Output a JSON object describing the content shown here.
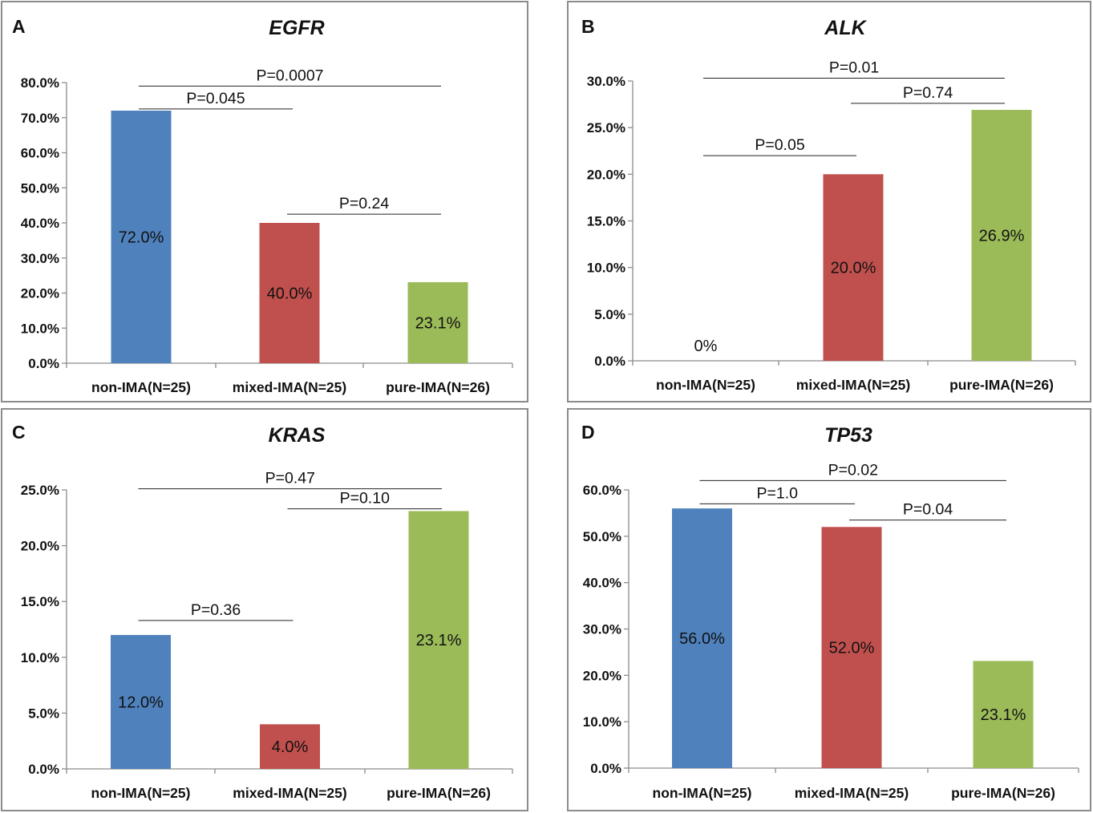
{
  "chart_data": [
    {
      "type": "bar",
      "panel_letter": "A",
      "title": "EGFR",
      "categories": [
        "non-IMA(N=25)",
        "mixed-IMA(N=25)",
        "pure-IMA(N=26)"
      ],
      "values": [
        72.0,
        40.0,
        23.1
      ],
      "value_labels": [
        "72.0%",
        "40.0%",
        "23.1%"
      ],
      "bar_colors": [
        "#4f81bd",
        "#c0504d",
        "#9bbb59"
      ],
      "ylim": [
        0,
        80
      ],
      "yticks": [
        0,
        10,
        20,
        30,
        40,
        50,
        60,
        70,
        80
      ],
      "ytick_labels": [
        "0.0%",
        "10.0%",
        "20.0%",
        "30.0%",
        "40.0%",
        "50.0%",
        "60.0%",
        "70.0%",
        "80.0%"
      ],
      "xlabel": "",
      "ylabel": "",
      "comparisons": [
        {
          "label": "P=0.0007",
          "from": "non-IMA(N=25)",
          "to": "pure-IMA(N=26)",
          "level": 79
        },
        {
          "label": "P=0.045",
          "from": "non-IMA(N=25)",
          "to": "mixed-IMA(N=25)",
          "level": 72.5
        },
        {
          "label": "P=0.24",
          "from": "mixed-IMA(N=25)",
          "to": "pure-IMA(N=26)",
          "level": 42.5
        }
      ]
    },
    {
      "type": "bar",
      "panel_letter": "B",
      "title": "ALK",
      "categories": [
        "non-IMA(N=25)",
        "mixed-IMA(N=25)",
        "pure-IMA(N=26)"
      ],
      "values": [
        0.0,
        20.0,
        26.9
      ],
      "value_labels": [
        "0%",
        "20.0%",
        "26.9%"
      ],
      "bar_colors": [
        "#4f81bd",
        "#c0504d",
        "#9bbb59"
      ],
      "ylim": [
        0,
        30
      ],
      "yticks": [
        0,
        5,
        10,
        15,
        20,
        25,
        30
      ],
      "ytick_labels": [
        "0.0%",
        "5.0%",
        "10.0%",
        "15.0%",
        "20.0%",
        "25.0%",
        "30.0%"
      ],
      "xlabel": "",
      "ylabel": "",
      "comparisons": [
        {
          "label": "P=0.01",
          "from": "non-IMA(N=25)",
          "to": "pure-IMA(N=26)",
          "level": 30.3
        },
        {
          "label": "P=0.74",
          "from": "mixed-IMA(N=25)",
          "to": "pure-IMA(N=26)",
          "level": 27.6
        },
        {
          "label": "P=0.05",
          "from": "non-IMA(N=25)",
          "to": "mixed-IMA(N=25)",
          "level": 22.0
        }
      ]
    },
    {
      "type": "bar",
      "panel_letter": "C",
      "title": "KRAS",
      "categories": [
        "non-IMA(N=25)",
        "mixed-IMA(N=25)",
        "pure-IMA(N=26)"
      ],
      "values": [
        12.0,
        4.0,
        23.1
      ],
      "value_labels": [
        "12.0%",
        "4.0%",
        "23.1%"
      ],
      "bar_colors": [
        "#4f81bd",
        "#c0504d",
        "#9bbb59"
      ],
      "ylim": [
        0,
        25
      ],
      "yticks": [
        0,
        5,
        10,
        15,
        20,
        25
      ],
      "ytick_labels": [
        "0.0%",
        "5.0%",
        "10.0%",
        "15.0%",
        "20.0%",
        "25.0%"
      ],
      "xlabel": "",
      "ylabel": "",
      "comparisons": [
        {
          "label": "P=0.47",
          "from": "non-IMA(N=25)",
          "to": "pure-IMA(N=26)",
          "level": 25.1
        },
        {
          "label": "P=0.10",
          "from": "mixed-IMA(N=25)",
          "to": "pure-IMA(N=26)",
          "level": 23.3
        },
        {
          "label": "P=0.36",
          "from": "non-IMA(N=25)",
          "to": "mixed-IMA(N=25)",
          "level": 13.3
        }
      ]
    },
    {
      "type": "bar",
      "panel_letter": "D",
      "title": "TP53",
      "categories": [
        "non-IMA(N=25)",
        "mixed-IMA(N=25)",
        "pure-IMA(N=26)"
      ],
      "values": [
        56.0,
        52.0,
        23.1
      ],
      "value_labels": [
        "56.0%",
        "52.0%",
        "23.1%"
      ],
      "bar_colors": [
        "#4f81bd",
        "#c0504d",
        "#9bbb59"
      ],
      "ylim": [
        0,
        60
      ],
      "yticks": [
        0,
        10,
        20,
        30,
        40,
        50,
        60
      ],
      "ytick_labels": [
        "0.0%",
        "10.0%",
        "20.0%",
        "30.0%",
        "40.0%",
        "50.0%",
        "60.0%"
      ],
      "xlabel": "",
      "ylabel": "",
      "comparisons": [
        {
          "label": "P=0.02",
          "from": "non-IMA(N=25)",
          "to": "pure-IMA(N=26)",
          "level": 62.0
        },
        {
          "label": "P=1.0",
          "from": "non-IMA(N=25)",
          "to": "mixed-IMA(N=25)",
          "level": 57.0
        },
        {
          "label": "P=0.04",
          "from": "mixed-IMA(N=25)",
          "to": "pure-IMA(N=26)",
          "level": 53.5
        }
      ]
    }
  ]
}
